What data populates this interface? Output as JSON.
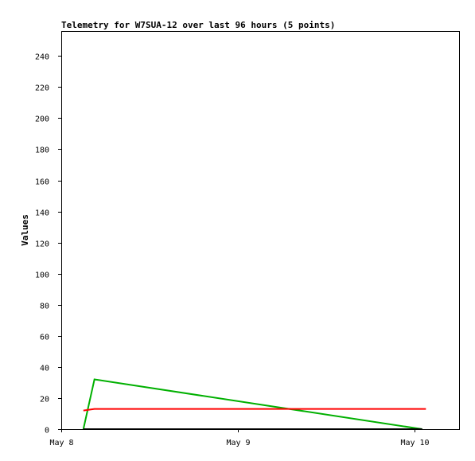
{
  "chart_data": {
    "type": "line",
    "title": "Telemetry for W7SUA-12 over last 96 hours (5 points)",
    "xlabel": "",
    "ylabel": "Values",
    "x_ticks": [
      "May 8",
      "May 9",
      "May 10"
    ],
    "xlim": [
      "2024-05-08 00:00",
      "2024-05-10 06:00"
    ],
    "ylim": [
      0,
      256
    ],
    "y_ticks": [
      0,
      20,
      40,
      60,
      80,
      100,
      120,
      140,
      160,
      180,
      200,
      220,
      240
    ],
    "grid": false,
    "legend": "none",
    "series": [
      {
        "color": "#00b000",
        "points": [
          {
            "x": "2024-05-08 03:00",
            "y": 0
          },
          {
            "x": "2024-05-08 04:30",
            "y": 32
          },
          {
            "x": "2024-05-10 01:00",
            "y": 0
          }
        ]
      },
      {
        "color": "#ff0000",
        "points": [
          {
            "x": "2024-05-08 03:00",
            "y": 12
          },
          {
            "x": "2024-05-08 04:30",
            "y": 13
          },
          {
            "x": "2024-05-10 01:30",
            "y": 13
          }
        ]
      },
      {
        "color": "#000000",
        "points": [
          {
            "x": "2024-05-08 03:00",
            "y": 0
          },
          {
            "x": "2024-05-10 01:00",
            "y": 0
          }
        ]
      }
    ]
  }
}
